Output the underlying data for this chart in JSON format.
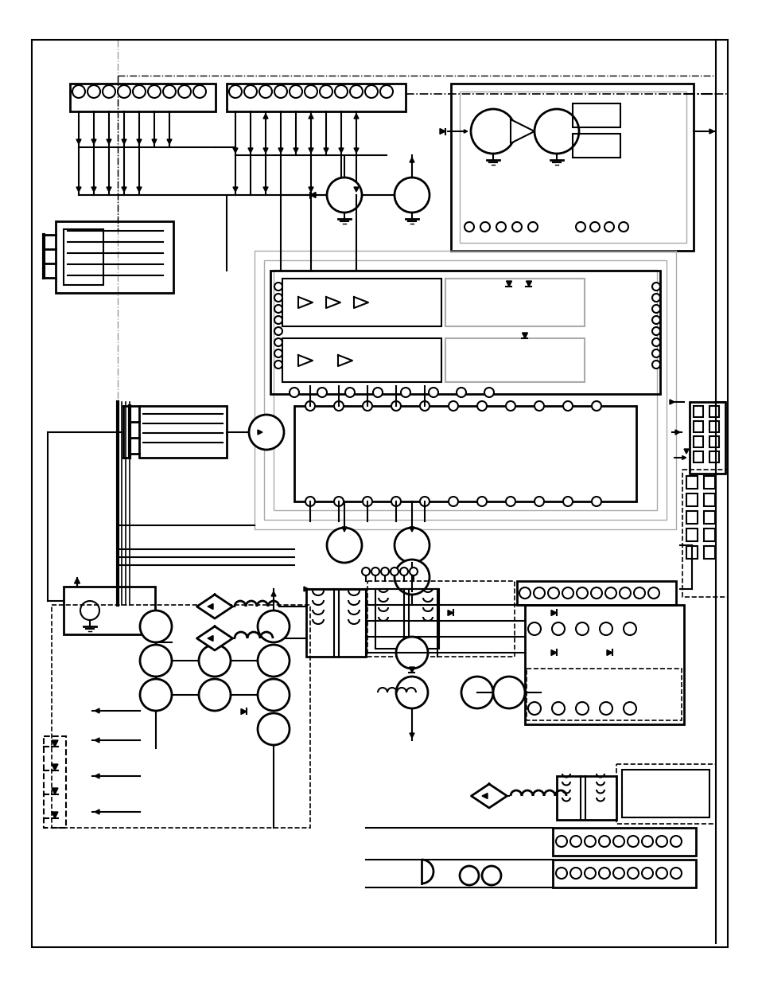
{
  "bg_color": "#ffffff",
  "line_color": "#000000",
  "gray_color": "#888888",
  "fig_width": 9.54,
  "fig_height": 12.35,
  "dpi": 100
}
